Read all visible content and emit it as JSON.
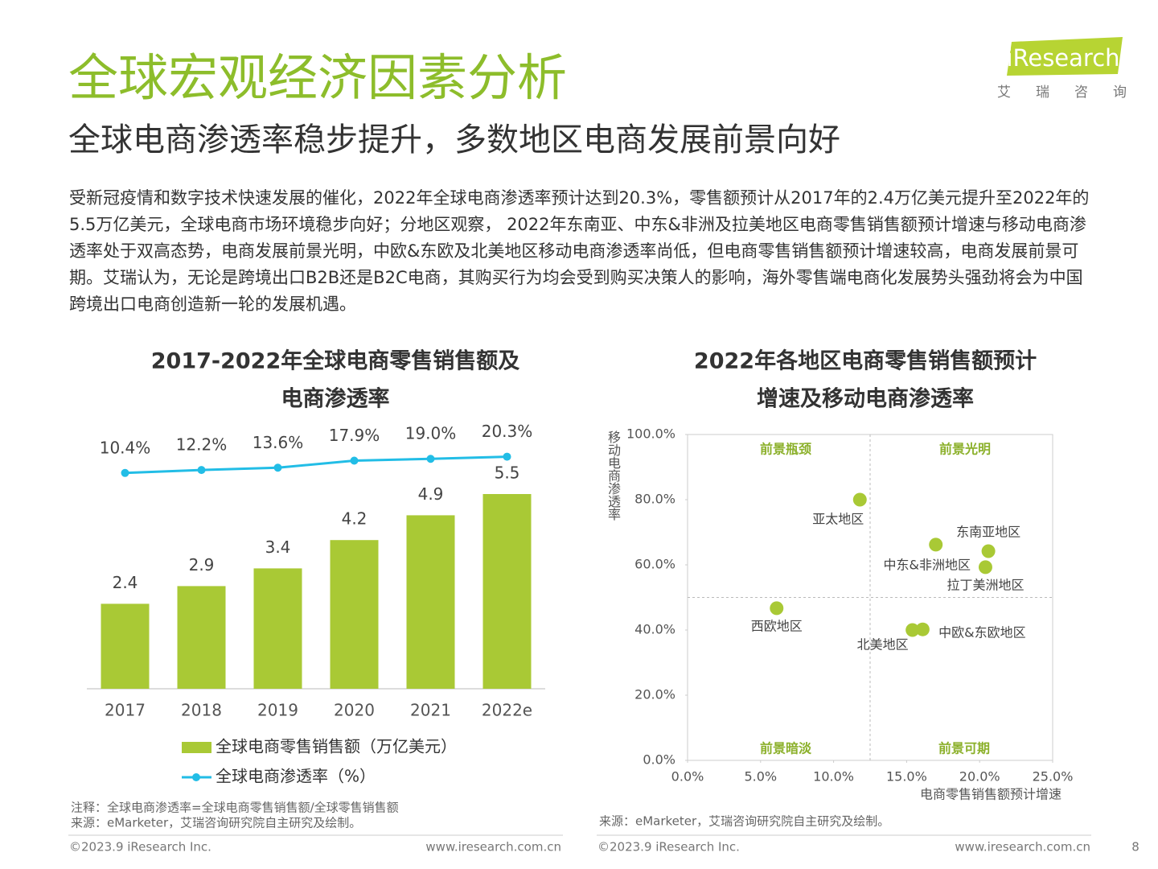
{
  "header": {
    "title": "全球宏观经济因素分析",
    "subtitle": "全球电商渗透率稳步提升，多数地区电商发展前景向好",
    "logo": "iResearch",
    "logo_sub": "艾瑞咨询"
  },
  "body": "受新冠疫情和数字技术快速发展的催化，2022年全球电商渗透率预计达到20.3%，零售额预计从2017年的2.4万亿美元提升至2022年的5.5万亿美元，全球电商市场环境稳步向好；分地区观察， 2022年东南亚、中东&非洲及拉美地区电商零售销售额预计增速与移动电商渗透率处于双高态势，电商发展前景光明，中欧&东欧及北美地区移动电商渗透率尚低，但电商零售销售额预计增速较高，电商发展前景可期。艾瑞认为，无论是跨境出口B2B还是B2C电商，其购买行为均会受到购买决策人的影响，海外零售端电商化发展势头强劲将会为中国跨境出口电商创造新一轮的发展机遇。",
  "chart_data": [
    {
      "type": "bar",
      "title": [
        "2017-2022年全球电商零售销售额及",
        "电商渗透率"
      ],
      "categories": [
        "2017",
        "2018",
        "2019",
        "2020",
        "2021",
        "2022e"
      ],
      "series": [
        {
          "name": "全球电商零售销售额（万亿美元）",
          "type": "bar",
          "color": "#a9c935",
          "values": [
            2.4,
            2.9,
            3.4,
            4.2,
            4.9,
            5.5
          ]
        },
        {
          "name": "全球电商渗透率（%）",
          "type": "line",
          "axis": "y2",
          "color": "#22bde6",
          "values": [
            10.4,
            12.2,
            13.6,
            17.9,
            19.0,
            20.3
          ],
          "value_labels": [
            "10.4%",
            "12.2%",
            "13.6%",
            "17.9%",
            "19.0%",
            "20.3%"
          ]
        }
      ],
      "ylim": [
        0,
        5.5
      ],
      "y2lim": [
        0,
        25
      ],
      "legend": "bottom"
    },
    {
      "type": "scatter",
      "title": [
        "2022年各地区电商零售销售额预计",
        "增速及移动电商渗透率"
      ],
      "x_label": "电商零售销售额预计增速",
      "y_label": "移动电商渗透率",
      "xlim": [
        0,
        25
      ],
      "ylim": [
        0,
        100
      ],
      "xticks": [
        {
          "value": 0,
          "label": "0.0%"
        },
        {
          "value": 5,
          "label": "5.0%"
        },
        {
          "value": 10,
          "label": "10.0%"
        },
        {
          "value": 15,
          "label": "15.0%"
        },
        {
          "value": 20,
          "label": "20.0%"
        },
        {
          "value": 25,
          "label": "25.0%"
        }
      ],
      "yticks": [
        {
          "value": 0,
          "label": "0.0%"
        },
        {
          "value": 20,
          "label": "20.0%"
        },
        {
          "value": 40,
          "label": "40.0%"
        },
        {
          "value": 60,
          "label": "60.0%"
        },
        {
          "value": 80,
          "label": "80.0%"
        },
        {
          "value": 100,
          "label": "100.0%"
        }
      ],
      "quadrant_labels": [
        "前景瓶颈",
        "前景光明",
        "前景暗淡",
        "前景可期"
      ],
      "series": [
        {
          "color": "#a9c935",
          "labels": [
            "亚太地区",
            "东南亚地区",
            "中东&非洲地区",
            "拉丁美洲地区",
            "西欧地区",
            "北美地区",
            "中欧&东欧地区"
          ],
          "x": [
            11.8,
            20.6,
            17.0,
            20.4,
            6.1,
            15.4,
            16.1
          ],
          "values": [
            80,
            64.2,
            66.2,
            59.3,
            46.7,
            40,
            40.2
          ]
        }
      ]
    }
  ],
  "footer": {
    "note": "注释：全球电商渗透率=全球电商零售销售额/全球零售销售额",
    "source_left": "来源：eMarketer，艾瑞咨询研究院自主研究及绘制。",
    "source_right": "来源：eMarketer，艾瑞咨询研究院自主研究及绘制。",
    "copyright_left": "©2023.9 iResearch Inc.",
    "url_left": "www.iresearch.com.cn",
    "copyright_right": "©2023.9 iResearch Inc.",
    "url_right": "www.iresearch.com.cn",
    "page": "8"
  }
}
